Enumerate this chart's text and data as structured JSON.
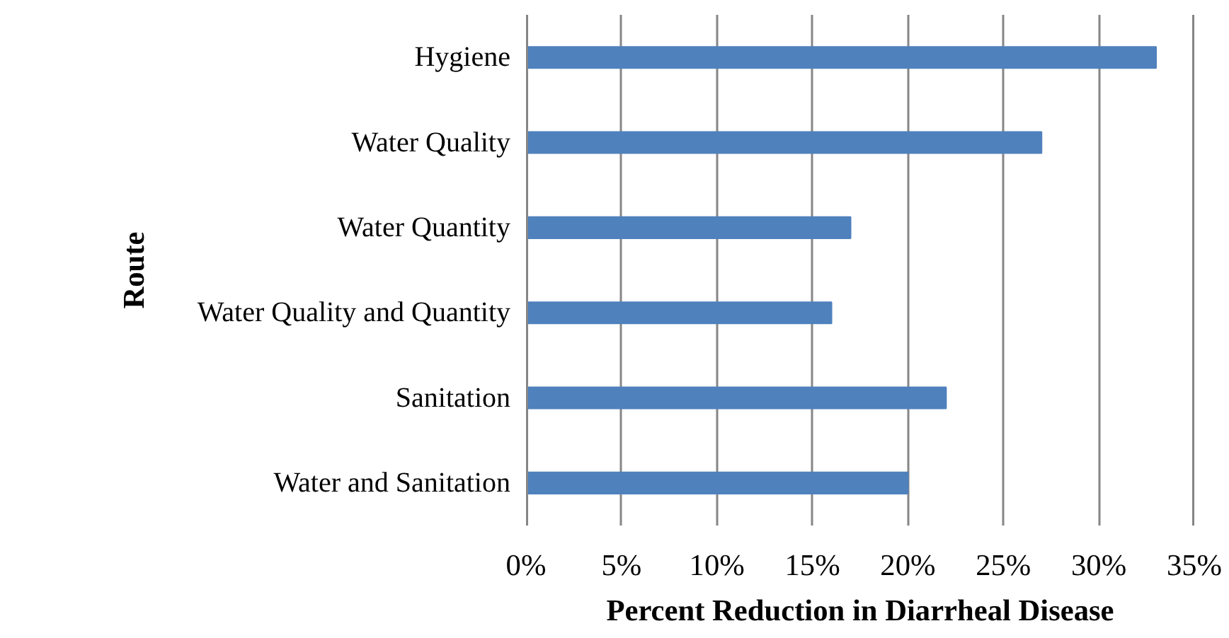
{
  "chart_data": {
    "type": "bar",
    "orientation": "horizontal",
    "xlabel": "Percent Reduction in Diarrheal Disease",
    "ylabel": "Route",
    "categories": [
      "Hygiene",
      "Water Quality",
      "Water Quantity",
      "Water Quality and Quantity",
      "Sanitation",
      "Water and Sanitation"
    ],
    "values": [
      33,
      27,
      17,
      16,
      22,
      20
    ],
    "color": "#4f81bd",
    "xlim": [
      0,
      35
    ],
    "xticks": [
      {
        "value": 0,
        "label": "0%"
      },
      {
        "value": 5,
        "label": "5%"
      },
      {
        "value": 10,
        "label": "10%"
      },
      {
        "value": 15,
        "label": "15%"
      },
      {
        "value": 20,
        "label": "20%"
      },
      {
        "value": 25,
        "label": "25%"
      },
      {
        "value": 30,
        "label": "30%"
      },
      {
        "value": 35,
        "label": "35%"
      }
    ],
    "grid": "x"
  }
}
